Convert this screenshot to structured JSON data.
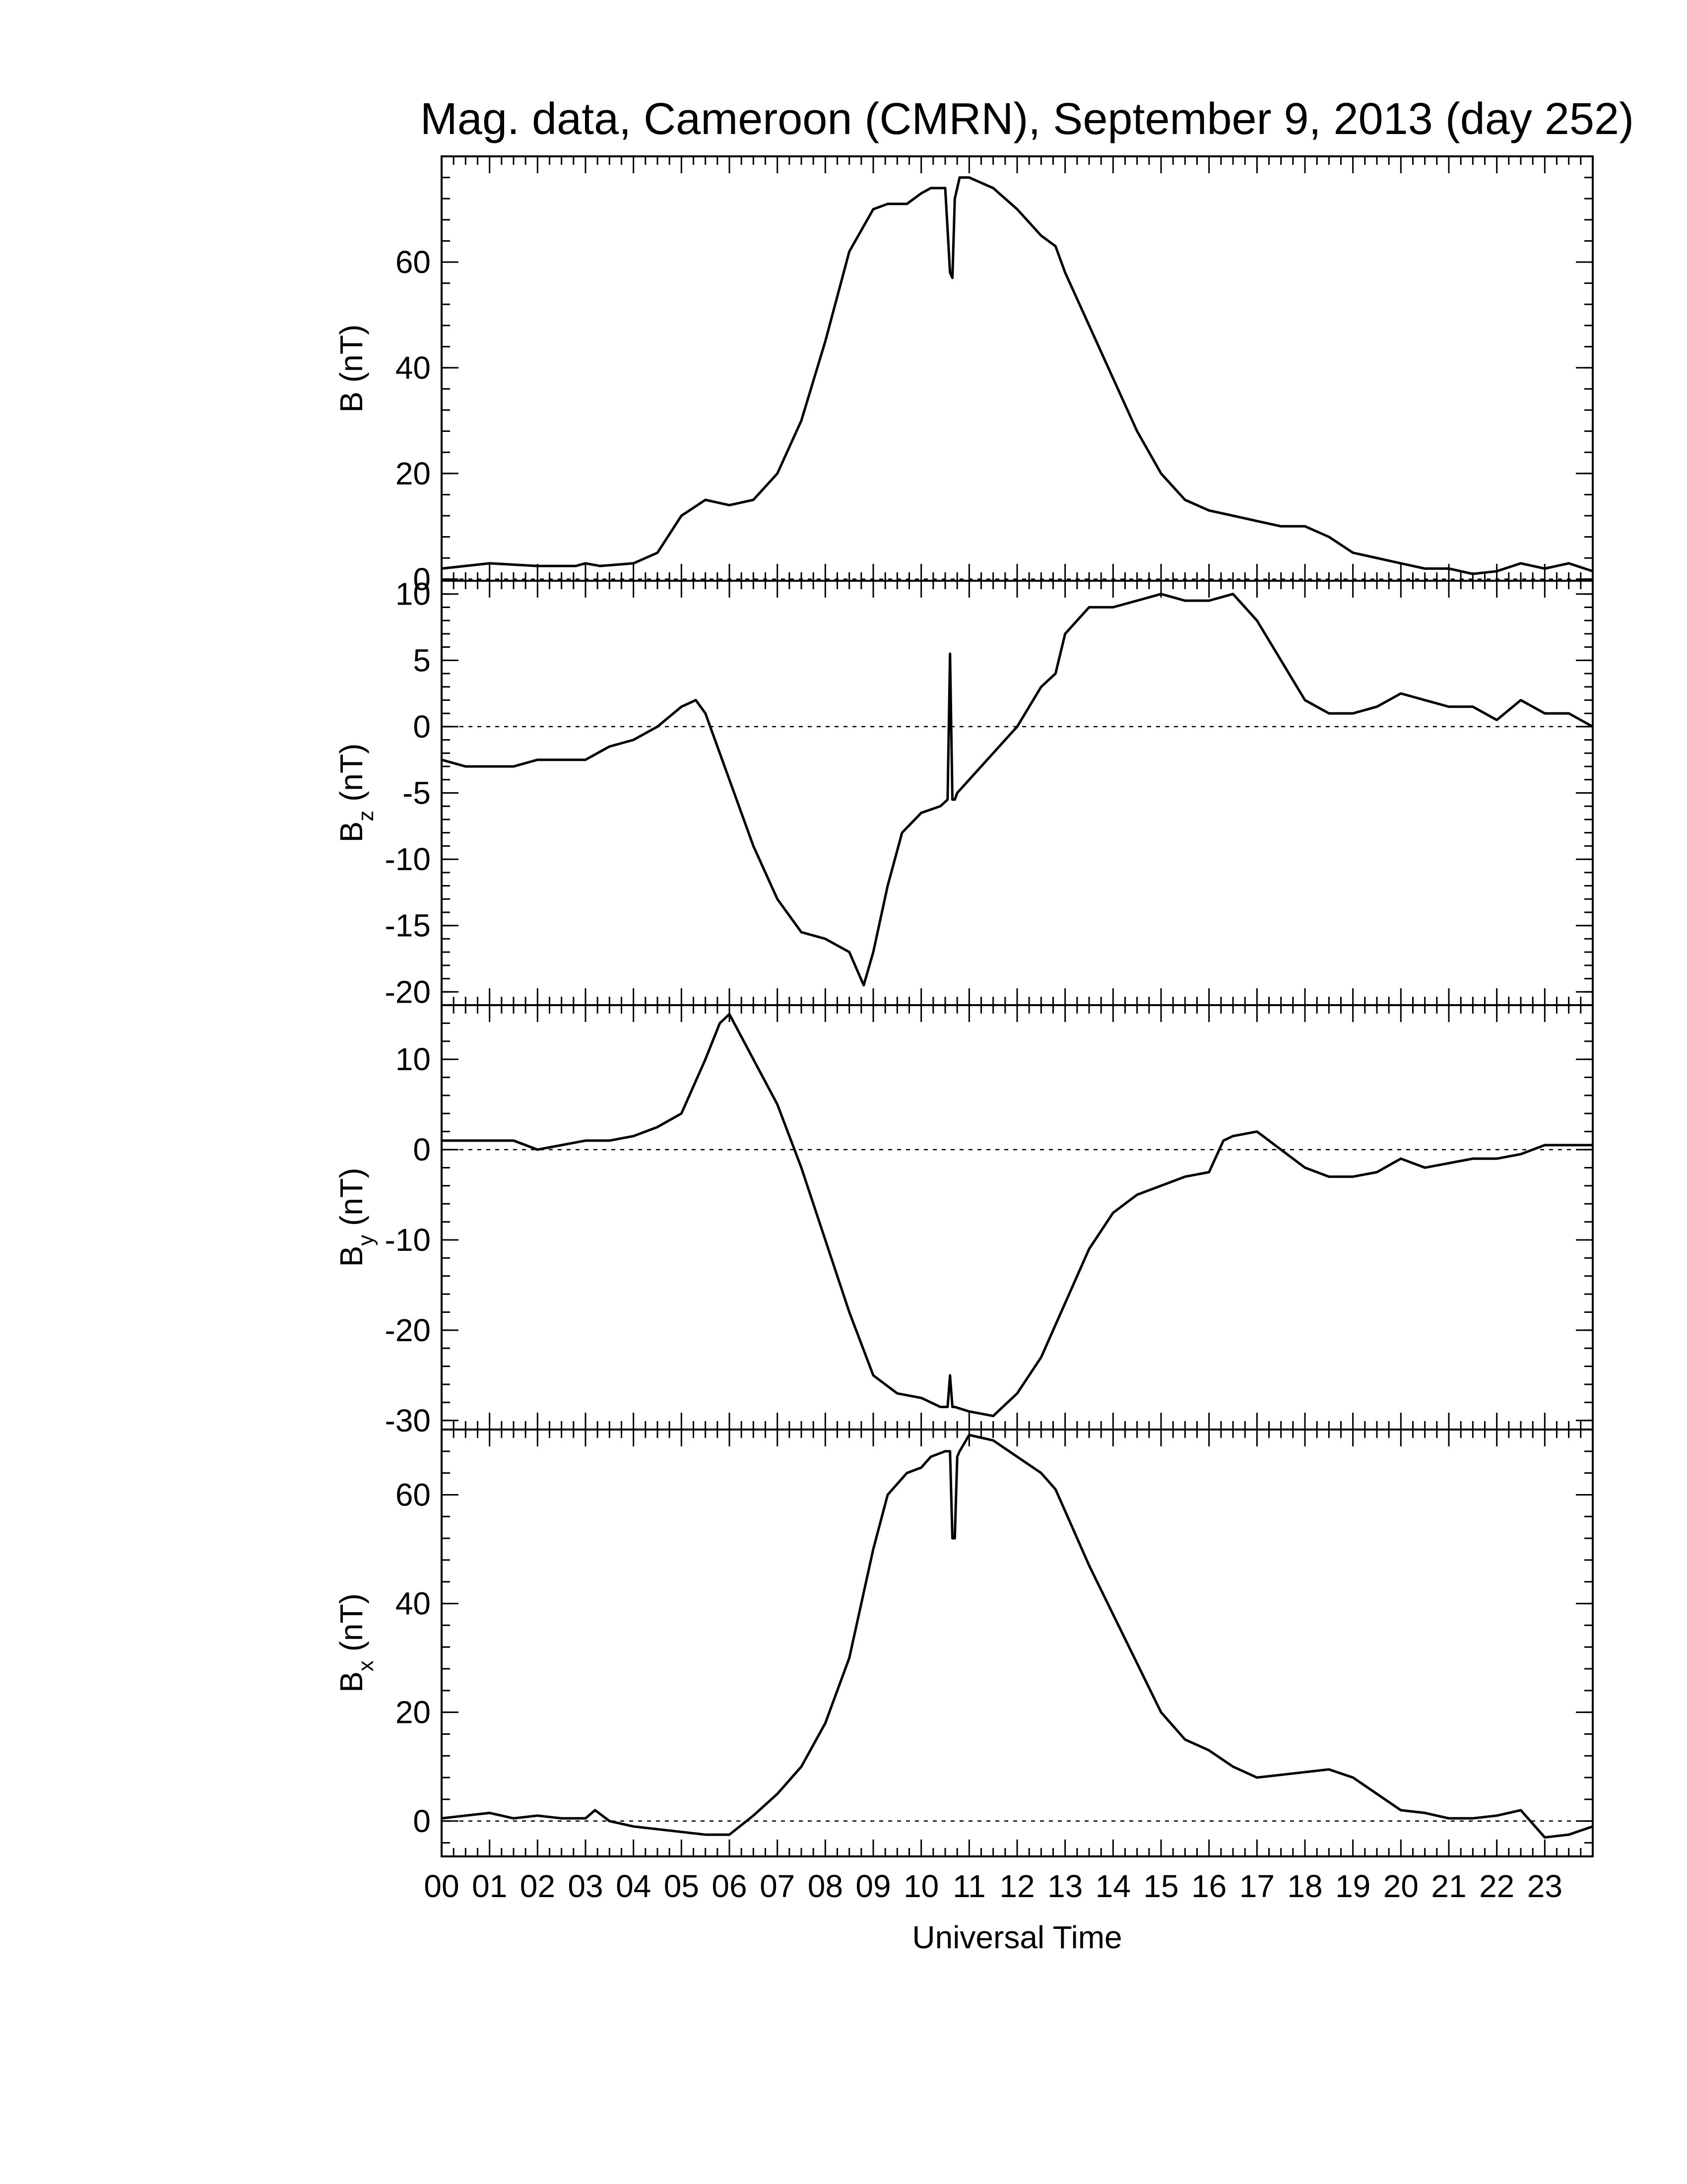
{
  "chart_data": {
    "type": "line",
    "title": "Mag. data, Cameroon (CMRN), September 9, 2013 (day 252)",
    "xlabel": "Universal Time",
    "xlim": [
      0,
      24
    ],
    "x_tick_labels": [
      "00",
      "01",
      "02",
      "03",
      "04",
      "05",
      "06",
      "07",
      "08",
      "09",
      "10",
      "11",
      "12",
      "13",
      "14",
      "15",
      "16",
      "17",
      "18",
      "19",
      "20",
      "21",
      "22",
      "23"
    ],
    "panels": [
      {
        "id": "B",
        "ylabel": {
          "main": "B",
          "sub": "",
          "unit": "(nT)"
        },
        "ylim": [
          -0.3,
          80
        ],
        "yticks": [
          0,
          20,
          40,
          60
        ],
        "zero_line": true,
        "x": [
          0,
          1,
          2,
          2.8,
          3,
          3.3,
          4,
          4.5,
          5,
          5.5,
          6,
          6.5,
          7,
          7.5,
          8,
          8.5,
          9,
          9.3,
          9.7,
          10,
          10.2,
          10.5,
          10.6,
          10.65,
          10.7,
          10.75,
          10.8,
          11,
          11.5,
          12,
          12.5,
          12.8,
          13,
          13.5,
          14,
          14.5,
          15,
          15.5,
          16,
          16.5,
          17,
          17.5,
          18,
          18.5,
          19,
          19.5,
          20,
          20.5,
          21,
          21.5,
          22,
          22.5,
          23,
          23.5,
          24
        ],
        "y": [
          2,
          3,
          2.5,
          2.5,
          3,
          2.5,
          3,
          5,
          12,
          15,
          14,
          15,
          20,
          30,
          45,
          62,
          70,
          71,
          71,
          73,
          74,
          74,
          58,
          57,
          72,
          74,
          76,
          76,
          74,
          70,
          65,
          63,
          58,
          48,
          38,
          28,
          20,
          15,
          13,
          12,
          11,
          10,
          10,
          8,
          5,
          4,
          3,
          2,
          2,
          1,
          1.5,
          3,
          2,
          3,
          1.5
        ]
      },
      {
        "id": "Bz",
        "ylabel": {
          "main": "B",
          "sub": "z",
          "unit": "(nT)"
        },
        "ylim": [
          -21,
          11
        ],
        "yticks": [
          -20,
          -15,
          -10,
          -5,
          0,
          5,
          10
        ],
        "zero_line": true,
        "x": [
          0,
          0.5,
          1,
          1.5,
          2,
          2.5,
          3,
          3.5,
          4,
          4.5,
          5,
          5.3,
          5.5,
          6,
          6.5,
          7,
          7.5,
          8,
          8.5,
          8.8,
          9,
          9.3,
          9.6,
          10,
          10.4,
          10.55,
          10.6,
          10.65,
          10.7,
          10.75,
          11,
          11.5,
          12,
          12.5,
          12.8,
          13,
          13.5,
          14,
          14.5,
          15,
          15.5,
          16,
          16.5,
          17,
          17.5,
          18,
          18.5,
          19,
          19.5,
          20,
          20.5,
          21,
          21.5,
          22,
          22.5,
          23,
          23.5,
          24
        ],
        "y": [
          -2.5,
          -3,
          -3,
          -3,
          -2.5,
          -2.5,
          -2.5,
          -1.5,
          -1,
          0,
          1.5,
          2,
          1,
          -4,
          -9,
          -13,
          -15.5,
          -16,
          -17,
          -19.5,
          -17,
          -12,
          -8,
          -6.5,
          -6,
          -5.5,
          5.5,
          -5.5,
          -5.5,
          -5,
          -4,
          -2,
          0,
          3,
          4,
          7,
          9,
          9,
          9.5,
          10,
          9.5,
          9.5,
          10,
          8,
          5,
          2,
          1,
          1,
          1.5,
          2.5,
          2,
          1.5,
          1.5,
          0.5,
          2,
          1,
          1,
          0
        ]
      },
      {
        "id": "By",
        "ylabel": {
          "main": "B",
          "sub": "y",
          "unit": "(nT)"
        },
        "ylim": [
          -31,
          16
        ],
        "yticks": [
          -30,
          -20,
          -10,
          0,
          10
        ],
        "zero_line": true,
        "x": [
          0,
          0.5,
          1,
          1.5,
          2,
          2.5,
          3,
          3.5,
          4,
          4.5,
          5,
          5.5,
          5.8,
          6,
          6.5,
          7,
          7.5,
          8,
          8.5,
          9,
          9.5,
          10,
          10.4,
          10.55,
          10.6,
          10.65,
          10.7,
          11,
          11.5,
          12,
          12.5,
          13,
          13.5,
          14,
          14.5,
          15,
          15.5,
          16,
          16.3,
          16.5,
          17,
          17.5,
          18,
          18.5,
          19,
          19.5,
          20,
          20.5,
          21,
          21.5,
          22,
          22.5,
          23,
          23.5,
          24
        ],
        "y": [
          1,
          1,
          1,
          1,
          0,
          0.5,
          1,
          1,
          1.5,
          2.5,
          4,
          10,
          14,
          15,
          10,
          5,
          -2,
          -10,
          -18,
          -25,
          -27,
          -27.5,
          -28.5,
          -28.5,
          -25,
          -28.5,
          -28.5,
          -29,
          -29.5,
          -27,
          -23,
          -17,
          -11,
          -7,
          -5,
          -4,
          -3,
          -2.5,
          1,
          1.5,
          2,
          0,
          -2,
          -3,
          -3,
          -2.5,
          -1,
          -2,
          -1.5,
          -1,
          -1,
          -0.5,
          0.5,
          0.5,
          0.5
        ]
      },
      {
        "id": "Bx",
        "ylabel": {
          "main": "B",
          "sub": "x",
          "unit": "(nT)"
        },
        "ylim": [
          -6.5,
          72
        ],
        "yticks": [
          0,
          20,
          40,
          60
        ],
        "zero_line": true,
        "x": [
          0,
          0.5,
          1,
          1.5,
          2,
          2.5,
          3,
          3.2,
          3.5,
          4,
          4.5,
          5,
          5.5,
          6,
          6.5,
          7,
          7.5,
          8,
          8.5,
          9,
          9.3,
          9.7,
          10,
          10.2,
          10.5,
          10.6,
          10.65,
          10.7,
          10.75,
          10.8,
          11,
          11.5,
          12,
          12.5,
          12.8,
          13,
          13.5,
          14,
          14.5,
          15,
          15.5,
          16,
          16.5,
          17,
          17.5,
          18,
          18.5,
          19,
          19.5,
          20,
          20.5,
          21,
          21.5,
          22,
          22.5,
          23,
          23.5,
          24
        ],
        "y": [
          0.5,
          1,
          1.5,
          0.5,
          1,
          0.5,
          0.5,
          2,
          0,
          -1,
          -1.5,
          -2,
          -2.5,
          -2.5,
          1,
          5,
          10,
          18,
          30,
          50,
          60,
          64,
          65,
          67,
          68,
          68,
          52,
          52,
          67,
          68,
          71,
          70,
          67,
          64,
          61,
          57,
          47,
          38,
          29,
          20,
          15,
          13,
          10,
          8,
          8.5,
          9,
          9.5,
          8,
          5,
          2,
          1.5,
          0.5,
          0.5,
          1,
          2,
          -3,
          -2.5,
          -1
        ]
      }
    ]
  }
}
